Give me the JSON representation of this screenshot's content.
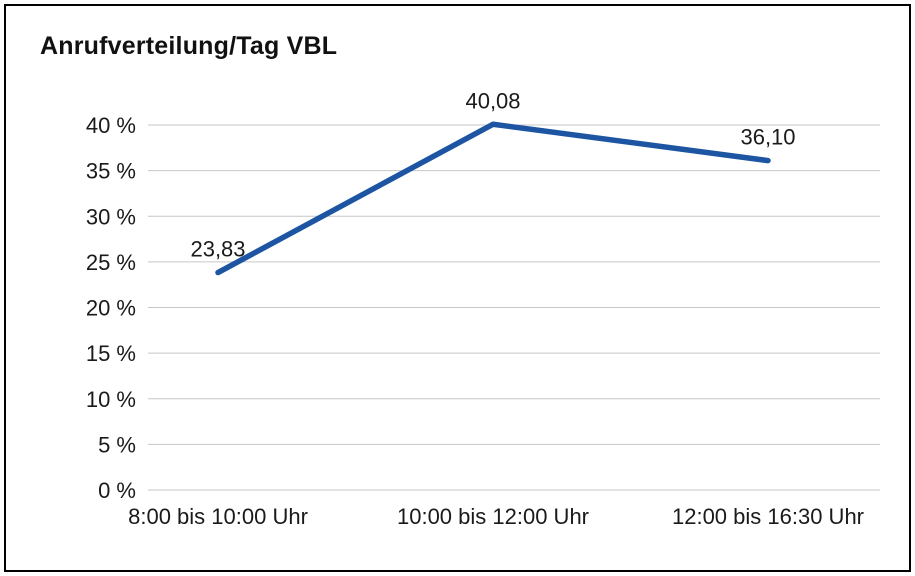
{
  "title": "Anrufverteilung/Tag VBL",
  "chart_data": {
    "type": "line",
    "title": "Anrufverteilung/Tag VBL",
    "categories": [
      "8:00 bis 10:00 Uhr",
      "10:00 bis 12:00 Uhr",
      "12:00 bis 16:30 Uhr"
    ],
    "values": [
      23.83,
      40.08,
      36.1
    ],
    "data_labels": [
      "23,83",
      "40,08",
      "36,10"
    ],
    "xlabel": "",
    "ylabel": "",
    "ylim": [
      0,
      40
    ],
    "ytick_step": 5,
    "ytick_suffix": " %",
    "grid": true,
    "legend": false,
    "line_color": "#1d55a3",
    "grid_color": "#c6c6c6",
    "text_color": "#1a1a1a"
  }
}
